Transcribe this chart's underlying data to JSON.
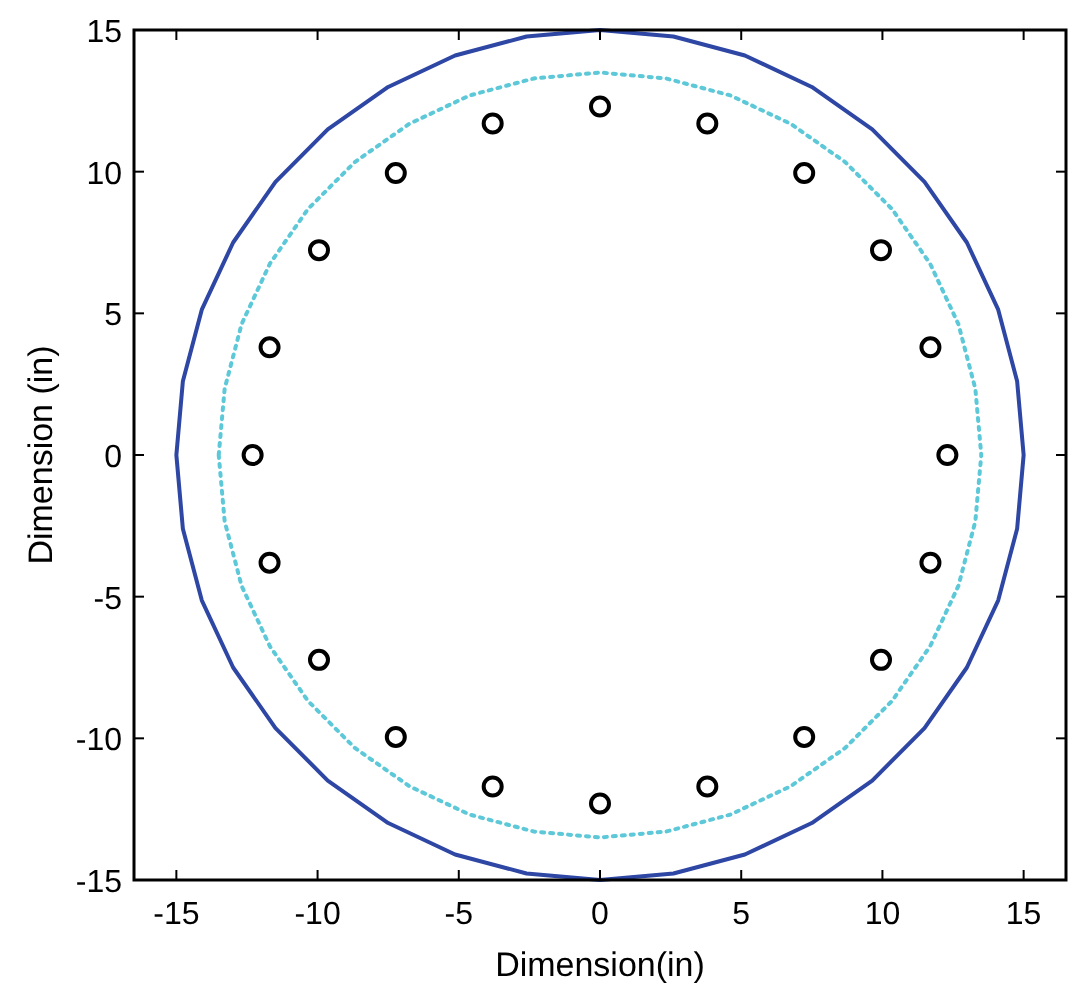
{
  "chart_data": {
    "type": "line",
    "xlabel": "Dimension(in)",
    "ylabel": "Dimension (in)",
    "xlim": [
      -16.5,
      16.5
    ],
    "ylim": [
      -15,
      15
    ],
    "xticks": [
      -15,
      -10,
      -5,
      0,
      5,
      10,
      15
    ],
    "yticks": [
      -15,
      -10,
      -5,
      0,
      5,
      10,
      15
    ],
    "series": [
      {
        "color": "#2e46a4",
        "line_style": "solid",
        "x": [
          -15,
          -14.77,
          -14.1,
          -12.99,
          -11.49,
          -9.64,
          -7.5,
          -5.13,
          -2.6,
          0,
          2.6,
          5.13,
          7.5,
          9.64,
          11.49,
          12.99,
          14.1,
          14.77,
          15,
          0,
          -15,
          -14.77,
          -14.1,
          -12.99,
          -11.49,
          -9.64,
          -7.5,
          -5.13,
          -2.6,
          0,
          2.6,
          5.13,
          7.5,
          9.64,
          11.49,
          12.99,
          14.1,
          14.77,
          15
        ],
        "values": [
          0,
          2.6,
          5.13,
          7.5,
          9.64,
          11.49,
          12.99,
          14.1,
          14.77,
          15,
          14.77,
          14.1,
          12.99,
          11.49,
          9.64,
          7.5,
          5.13,
          2.6,
          0,
          null,
          0,
          -2.6,
          -5.13,
          -7.5,
          -9.64,
          -11.49,
          -12.99,
          -14.1,
          -14.77,
          -15,
          -14.77,
          -14.1,
          -12.99,
          -11.49,
          -9.64,
          -7.5,
          -5.13,
          -2.6,
          0
        ]
      },
      {
        "color": "#5cc8d8",
        "line_style": "dotted",
        "x": [
          -13.5,
          -13.29,
          -12.69,
          -11.69,
          -10.34,
          -8.68,
          -6.75,
          -4.62,
          -2.34,
          0,
          2.34,
          4.62,
          6.75,
          8.68,
          10.34,
          11.69,
          12.69,
          13.29,
          13.5,
          0,
          -13.5,
          -13.29,
          -12.69,
          -11.69,
          -10.34,
          -8.68,
          -6.75,
          -4.62,
          -2.34,
          0,
          2.34,
          4.62,
          6.75,
          8.68,
          10.34,
          11.69,
          12.69,
          13.29,
          13.5
        ],
        "values": [
          0,
          2.34,
          4.62,
          6.75,
          8.68,
          10.34,
          11.69,
          12.69,
          13.29,
          13.5,
          13.29,
          12.69,
          11.69,
          10.34,
          8.68,
          6.75,
          4.62,
          2.34,
          0,
          null,
          0,
          -2.34,
          -4.62,
          -6.75,
          -8.68,
          -10.34,
          -11.69,
          -12.69,
          -13.29,
          -13.5,
          -13.29,
          -12.69,
          -11.69,
          -10.34,
          -8.68,
          -6.75,
          -4.62,
          -2.34,
          0
        ]
      },
      {
        "type": "scatter",
        "color": "#000000",
        "marker": "circle",
        "x": [
          12.3,
          11.7,
          9.95,
          7.23,
          3.8,
          0,
          -3.8,
          -7.23,
          -9.95,
          -11.7,
          -12.3,
          -11.7,
          -9.95,
          -7.23,
          -3.8,
          0,
          3.8,
          7.23,
          9.95,
          11.7
        ],
        "values": [
          0,
          3.8,
          7.23,
          9.95,
          11.7,
          12.3,
          11.7,
          9.95,
          7.23,
          3.8,
          0,
          -3.8,
          -7.23,
          -9.95,
          -11.7,
          -12.3,
          -11.7,
          -9.95,
          -7.23,
          -3.8
        ]
      }
    ]
  }
}
